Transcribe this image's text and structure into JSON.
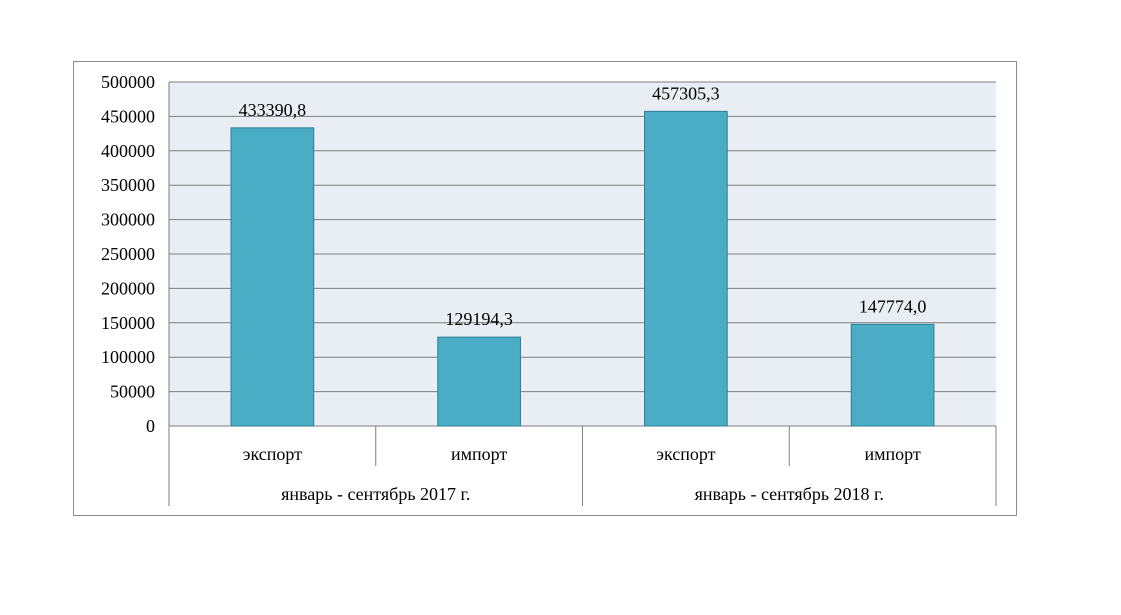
{
  "chart_data": {
    "type": "bar",
    "title": "",
    "xlabel": "",
    "ylabel": "",
    "ylim": [
      0,
      500000
    ],
    "yticks": [
      0,
      50000,
      100000,
      150000,
      200000,
      250000,
      300000,
      350000,
      400000,
      450000,
      500000
    ],
    "ytick_labels": [
      "0",
      "50000",
      "100000",
      "150000",
      "200000",
      "250000",
      "300000",
      "350000",
      "400000",
      "450000",
      "500000"
    ],
    "grid": true,
    "legend": "none",
    "colors": {
      "bar": "#4bacc6",
      "bar_edge": "#2e7f93",
      "plot_bg": "#e8eef3",
      "grid": "#7f7f7f"
    },
    "groups": [
      {
        "label": "январь - сентябрь 2017 г.",
        "categories": [
          "экспорт",
          "импорт"
        ],
        "values": [
          433390.8,
          129194.3
        ],
        "value_labels": [
          "433390,8",
          "129194,3"
        ]
      },
      {
        "label": "январь - сентябрь 2018 г.",
        "categories": [
          "экспорт",
          "импорт"
        ],
        "values": [
          457305.3,
          147774.0
        ],
        "value_labels": [
          "457305,3",
          "147774,0"
        ]
      }
    ]
  }
}
